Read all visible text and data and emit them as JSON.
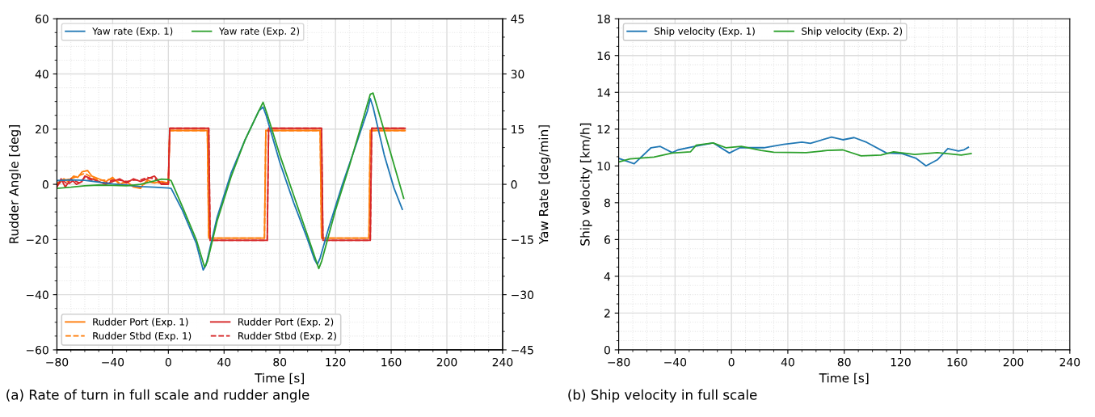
{
  "chart_data": [
    {
      "type": "line",
      "xlabel": "Time [s]",
      "ylabel": "Rudder Angle [deg]",
      "y2label": "Yaw Rate [deg/min]",
      "xlim": [
        -80,
        240
      ],
      "xticks": [
        -80,
        -40,
        0,
        40,
        80,
        120,
        160,
        200,
        240
      ],
      "ylim": [
        -60,
        60
      ],
      "yticks": [
        -60,
        -40,
        -20,
        0,
        20,
        40,
        60
      ],
      "y2lim": [
        -45,
        45
      ],
      "y2ticks": [
        -45,
        -30,
        -15,
        0,
        15,
        30,
        45
      ],
      "grid": true,
      "legend": "top left",
      "annotations": [
        "(a) Rate of turn in full scale and rudder angle"
      ],
      "series": [
        {
          "name": "Yaw rate (Exp. 1)",
          "color": "#1f77b4",
          "axis": "y2",
          "x": [
            -80,
            -70,
            -60,
            -50,
            -40,
            -30,
            -20,
            -10,
            0,
            2,
            10,
            20,
            25,
            27,
            35,
            45,
            55,
            65,
            68,
            70,
            80,
            90,
            100,
            105,
            107,
            109,
            115,
            125,
            135,
            143,
            145,
            147,
            155,
            162,
            168
          ],
          "values": [
            1.0,
            1.2,
            1.1,
            0.6,
            0.1,
            -0.2,
            -0.6,
            -0.8,
            -1.0,
            -1.1,
            -7,
            -16,
            -23.3,
            -22,
            -9,
            3,
            12,
            20,
            21,
            19,
            6,
            -5,
            -15,
            -20.5,
            -21.8,
            -20,
            -12,
            0,
            11,
            20,
            23.3,
            21,
            8,
            -1,
            -6.8
          ]
        },
        {
          "name": "Yaw rate (Exp. 2)",
          "color": "#2ca02c",
          "axis": "y2",
          "x": [
            -80,
            -70,
            -60,
            -50,
            -40,
            -30,
            -20,
            -10,
            -5,
            0,
            2,
            10,
            20,
            26,
            28,
            35,
            45,
            55,
            65,
            68,
            71,
            80,
            90,
            100,
            108,
            110,
            120,
            130,
            140,
            145,
            147,
            150,
            160,
            169
          ],
          "values": [
            -1.1,
            -0.8,
            -0.4,
            -0.2,
            -0.3,
            -0.4,
            0,
            0.9,
            1.4,
            1.3,
            1.0,
            -6,
            -15,
            -22.5,
            -21,
            -10,
            2,
            12,
            20,
            22.3,
            19,
            8,
            -3,
            -14,
            -22.9,
            -21,
            -7,
            5,
            18,
            24.5,
            24.8,
            21,
            8,
            -3.8
          ]
        },
        {
          "name": "Rudder Port (Exp. 1)",
          "color": "#ff7f0e",
          "line_style": "solid",
          "x": [
            -80,
            -75,
            -72,
            -68,
            -65,
            -62,
            -58,
            -55,
            -50,
            -45,
            -40,
            -35,
            -30,
            -25,
            -20,
            -18,
            -15,
            -10,
            -5,
            0,
            1,
            28,
            29,
            69,
            70,
            109,
            110,
            144,
            145,
            170
          ],
          "values": [
            0,
            2,
            1,
            3,
            2.5,
            4.5,
            5,
            3,
            2,
            1,
            2.5,
            0,
            1,
            -1,
            -1.5,
            0,
            1.5,
            0.5,
            1,
            0.5,
            19.5,
            19.5,
            -19.5,
            -19.5,
            19.5,
            19.5,
            -19.5,
            -19.5,
            19.5,
            19.5
          ]
        },
        {
          "name": "Rudder Stbd (Exp. 1)",
          "color": "#ff7f0e",
          "line_style": "dashed",
          "x": [
            -80,
            -75,
            -70,
            -65,
            -60,
            -55,
            -50,
            -45,
            -40,
            -35,
            -30,
            -25,
            -20,
            -15,
            -10,
            -5,
            0,
            1,
            28,
            29,
            69,
            70,
            109,
            110,
            144,
            145,
            170
          ],
          "values": [
            0.5,
            1.5,
            2,
            3,
            4,
            2.5,
            1.5,
            1.5,
            2,
            0.5,
            0.5,
            -0.5,
            -1,
            1,
            0.5,
            0.5,
            0.5,
            19.5,
            19.5,
            -19.5,
            -19.5,
            19.5,
            19.5,
            -19.5,
            -19.5,
            19.5,
            19.5
          ]
        },
        {
          "name": "Rudder Port (Exp. 2)",
          "color": "#d62728",
          "line_style": "solid",
          "x": [
            -80,
            -77,
            -74,
            -70,
            -66,
            -62,
            -60,
            -55,
            -50,
            -45,
            -40,
            -35,
            -30,
            -25,
            -20,
            -15,
            -10,
            -5,
            0,
            1,
            29,
            30,
            71,
            72,
            110,
            111,
            145,
            146,
            170
          ],
          "values": [
            -1,
            2,
            -1,
            2,
            0,
            1,
            3,
            2,
            1,
            0,
            1,
            2,
            0.5,
            2,
            1,
            2,
            3,
            0,
            0,
            20.3,
            20.3,
            -20.3,
            -20.3,
            20.3,
            20.3,
            -20.3,
            -20.3,
            20.3,
            20.3
          ]
        },
        {
          "name": "Rudder Stbd (Exp. 2)",
          "color": "#d62728",
          "line_style": "dashed",
          "x": [
            -80,
            -76,
            -72,
            -68,
            -64,
            -60,
            -55,
            -50,
            -45,
            -40,
            -35,
            -30,
            -25,
            -20,
            -15,
            -10,
            -5,
            0,
            1,
            29,
            30,
            71,
            72,
            110,
            111,
            145,
            146,
            170
          ],
          "values": [
            -0.5,
            1.5,
            0,
            1.5,
            0.5,
            2.5,
            1.5,
            1,
            0.5,
            1.5,
            1.5,
            1,
            1.5,
            1.5,
            2.5,
            2,
            0.5,
            0,
            20.3,
            20.3,
            -20.3,
            -20.3,
            20.3,
            20.3,
            -20.3,
            -20.3,
            20.3,
            20.3
          ]
        }
      ]
    },
    {
      "type": "line",
      "xlabel": "Time [s]",
      "ylabel": "Ship velocity [km/h]",
      "xlim": [
        -80,
        240
      ],
      "xticks": [
        -80,
        -40,
        0,
        40,
        80,
        120,
        160,
        200,
        240
      ],
      "ylim": [
        0,
        18
      ],
      "yticks": [
        0,
        2,
        4,
        6,
        8,
        10,
        12,
        14,
        16,
        18
      ],
      "grid": true,
      "legend": "top left",
      "annotations": [
        "(b) Ship velocity in full scale"
      ],
      "series": [
        {
          "name": "Ship velocity (Exp. 1)",
          "color": "#1f77b4",
          "x": [
            -80,
            -69,
            -57,
            -50.5,
            -42,
            -38,
            -26,
            -13,
            -1.5,
            6,
            23,
            37,
            50,
            56,
            71,
            79,
            87,
            96,
            110,
            121,
            131,
            138,
            146,
            153.5,
            161,
            165,
            168
          ],
          "values": [
            10.41,
            10.12,
            10.99,
            11.06,
            10.72,
            10.87,
            11.06,
            11.25,
            10.7,
            10.99,
            10.99,
            11.17,
            11.29,
            11.23,
            11.57,
            11.42,
            11.54,
            11.28,
            10.7,
            10.67,
            10.41,
            10.0,
            10.33,
            10.94,
            10.81,
            10.88,
            11.01
          ]
        },
        {
          "name": "Ship velocity (Exp. 2)",
          "color": "#2ca02c",
          "x": [
            -80,
            -72,
            -55,
            -42,
            -29,
            -25,
            -13,
            -4,
            7,
            21,
            30,
            53,
            68,
            79,
            92,
            106,
            115,
            130,
            146,
            163,
            170
          ],
          "values": [
            10.22,
            10.38,
            10.48,
            10.7,
            10.77,
            11.13,
            11.25,
            10.99,
            11.06,
            10.84,
            10.74,
            10.72,
            10.84,
            10.87,
            10.55,
            10.59,
            10.77,
            10.62,
            10.72,
            10.59,
            10.67
          ]
        }
      ]
    }
  ]
}
